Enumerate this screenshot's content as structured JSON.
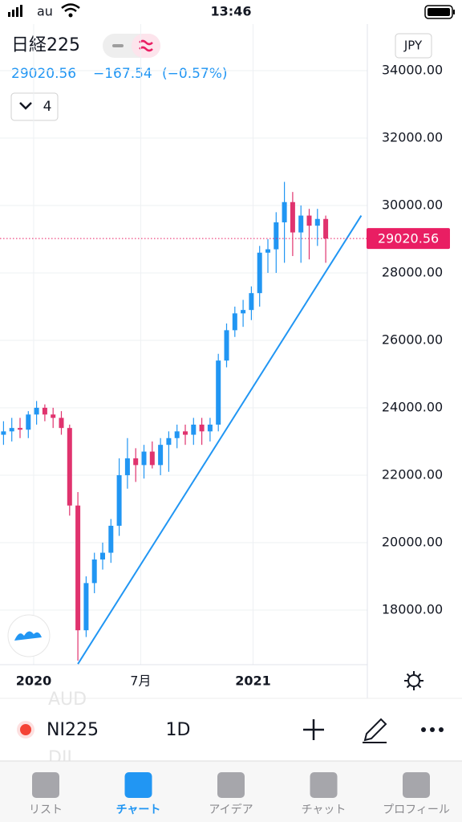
{
  "status_bar": {
    "carrier": "au",
    "time": "13:46"
  },
  "header": {
    "symbol": "日経225",
    "change": "−167.54",
    "change_pct": "(−0.57%)",
    "indicators_count": 4,
    "currency": "JPY"
  },
  "chart_data": {
    "type": "candlestick",
    "categories": [
      null,
      null,
      null,
      null,
      null,
      null,
      null,
      null,
      null,
      null,
      null,
      null,
      null,
      null,
      null,
      null,
      null,
      null,
      null,
      null,
      null,
      null,
      null,
      null,
      null,
      null,
      null,
      null,
      null,
      null,
      null,
      null,
      null,
      null,
      null,
      null,
      null,
      null,
      null,
      null
    ],
    "open": [
      23200,
      23300,
      23400,
      23350,
      23800,
      24000,
      23800,
      23700,
      23400,
      21100,
      17400,
      18800,
      19500,
      19700,
      20500,
      22000,
      22500,
      22300,
      22700,
      22300,
      22900,
      23100,
      23300,
      23200,
      23500,
      23300,
      23500,
      25400,
      26300,
      26800,
      26900,
      27400,
      28600,
      28700,
      29500,
      30100,
      29200,
      29700,
      29400,
      29600
    ],
    "high": [
      23600,
      23700,
      23700,
      23900,
      24200,
      24100,
      24000,
      23900,
      23500,
      21500,
      19000,
      19700,
      20000,
      20700,
      22500,
      23100,
      22800,
      22900,
      23000,
      23100,
      23300,
      23500,
      23500,
      23700,
      23700,
      23700,
      25600,
      26500,
      27000,
      27200,
      27600,
      28800,
      29000,
      29800,
      30700,
      30400,
      30000,
      29900,
      29900,
      29700
    ],
    "low": [
      22900,
      23000,
      23100,
      23100,
      23500,
      23600,
      23400,
      23200,
      20800,
      16500,
      17200,
      18500,
      19200,
      19400,
      20200,
      21600,
      21800,
      21900,
      22200,
      22000,
      22100,
      22800,
      22900,
      22900,
      22900,
      23000,
      23300,
      25200,
      26100,
      26400,
      26600,
      27000,
      28000,
      28000,
      28300,
      28500,
      28300,
      28400,
      28800,
      28300
    ],
    "close": [
      23300,
      23400,
      23350,
      23800,
      24000,
      23800,
      23700,
      23400,
      21100,
      17400,
      18800,
      19500,
      19700,
      20500,
      22000,
      22500,
      22300,
      22700,
      22300,
      22900,
      23100,
      23300,
      23200,
      23500,
      23300,
      23500,
      25400,
      26300,
      26800,
      26900,
      27400,
      28600,
      28700,
      29500,
      30100,
      29200,
      29700,
      29400,
      29600,
      29020
    ],
    "up_color": "#2196f3",
    "down_color": "#e0336e",
    "last_price": 29020.56,
    "last_price_color": "#e91e63",
    "trend_line": {
      "x": [
        9.0,
        43.3
      ],
      "y": [
        16400,
        29700
      ],
      "color": "#2196f3"
    },
    "ylim": [
      16380,
      35380
    ],
    "yticks": [
      {
        "value": 18000,
        "label": "18000.00"
      },
      {
        "value": 20000,
        "label": "20000.00"
      },
      {
        "value": 22000,
        "label": "22000.00"
      },
      {
        "value": 24000,
        "label": "24000.00"
      },
      {
        "value": 26000,
        "label": "26000.00"
      },
      {
        "value": 28000,
        "label": "28000.00"
      },
      {
        "value": 30000,
        "label": "30000.00"
      },
      {
        "value": 32000,
        "label": "32000.00"
      },
      {
        "value": 34000,
        "label": "34000.00"
      }
    ],
    "xticks": [
      {
        "value": 3.65,
        "label": "2020"
      },
      {
        "value": 16.6,
        "label": "7月"
      },
      {
        "value": 30.2,
        "label": "2021"
      }
    ],
    "grid": true
  },
  "toolbar": {
    "symbol": "NI225",
    "interval": "1D",
    "ghost": [
      "AUD",
      "DJI"
    ]
  },
  "tabs": [
    "リスト",
    "チャート",
    "アイデア",
    "チャット",
    "プロフィール"
  ]
}
